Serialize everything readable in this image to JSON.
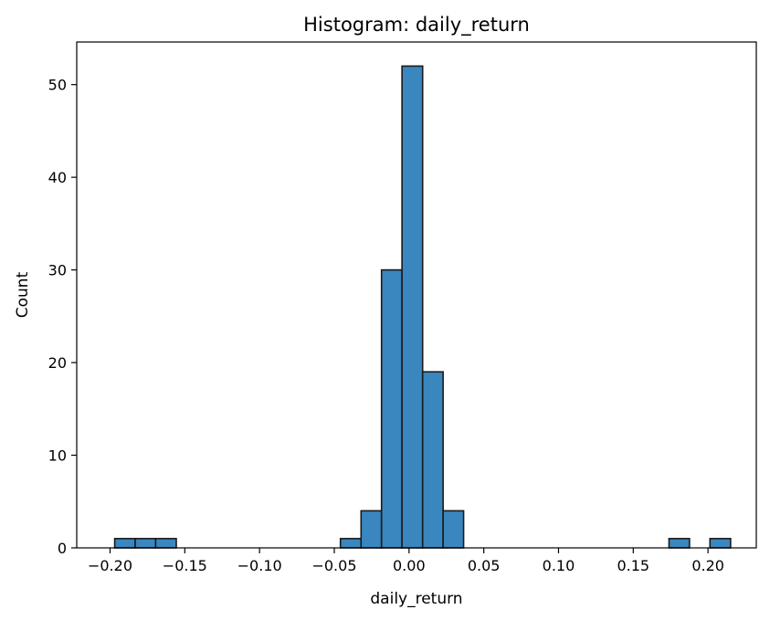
{
  "chart_data": {
    "type": "bar",
    "title": "Histogram: daily_return",
    "xlabel": "daily_return",
    "ylabel": "Count",
    "xlim": [
      -0.2223,
      0.2323
    ],
    "ylim": [
      0,
      54.6
    ],
    "xticks": [
      -0.2,
      -0.15,
      -0.1,
      -0.05,
      0.0,
      0.05,
      0.1,
      0.15,
      0.2
    ],
    "xtick_labels": [
      "−0.20",
      "−0.15",
      "−0.10",
      "−0.05",
      "0.00",
      "0.05",
      "0.10",
      "0.15",
      "0.20"
    ],
    "yticks": [
      0,
      10,
      20,
      30,
      40,
      50
    ],
    "ytick_labels": [
      "0",
      "10",
      "20",
      "30",
      "40",
      "50"
    ],
    "grid": false,
    "bin_width": 0.01373,
    "bins": [
      {
        "x0": -0.1969,
        "x1": -0.1832,
        "count": 1
      },
      {
        "x0": -0.1832,
        "x1": -0.1695,
        "count": 1
      },
      {
        "x0": -0.1695,
        "x1": -0.1557,
        "count": 1
      },
      {
        "x0": -0.1557,
        "x1": -0.142,
        "count": 0
      },
      {
        "x0": -0.142,
        "x1": -0.1283,
        "count": 0
      },
      {
        "x0": -0.1283,
        "x1": -0.1145,
        "count": 0
      },
      {
        "x0": -0.1145,
        "x1": -0.1008,
        "count": 0
      },
      {
        "x0": -0.1008,
        "x1": -0.0871,
        "count": 0
      },
      {
        "x0": -0.0871,
        "x1": -0.0733,
        "count": 0
      },
      {
        "x0": -0.0733,
        "x1": -0.0596,
        "count": 0
      },
      {
        "x0": -0.0596,
        "x1": -0.0459,
        "count": 0
      },
      {
        "x0": -0.0459,
        "x1": -0.0321,
        "count": 1
      },
      {
        "x0": -0.0321,
        "x1": -0.0184,
        "count": 4
      },
      {
        "x0": -0.0184,
        "x1": -0.0047,
        "count": 30
      },
      {
        "x0": -0.0047,
        "x1": 0.0091,
        "count": 52
      },
      {
        "x0": 0.0091,
        "x1": 0.0228,
        "count": 19
      },
      {
        "x0": 0.0228,
        "x1": 0.0365,
        "count": 4
      },
      {
        "x0": 0.0365,
        "x1": 0.0503,
        "count": 0
      },
      {
        "x0": 0.0503,
        "x1": 0.064,
        "count": 0
      },
      {
        "x0": 0.064,
        "x1": 0.0777,
        "count": 0
      },
      {
        "x0": 0.0777,
        "x1": 0.0915,
        "count": 0
      },
      {
        "x0": 0.0915,
        "x1": 0.1052,
        "count": 0
      },
      {
        "x0": 0.1052,
        "x1": 0.1189,
        "count": 0
      },
      {
        "x0": 0.1189,
        "x1": 0.1327,
        "count": 0
      },
      {
        "x0": 0.1327,
        "x1": 0.1464,
        "count": 0
      },
      {
        "x0": 0.1464,
        "x1": 0.1601,
        "count": 0
      },
      {
        "x0": 0.1601,
        "x1": 0.1739,
        "count": 0
      },
      {
        "x0": 0.1739,
        "x1": 0.1876,
        "count": 1
      },
      {
        "x0": 0.1876,
        "x1": 0.2013,
        "count": 0
      },
      {
        "x0": 0.2013,
        "x1": 0.2151,
        "count": 1
      }
    ],
    "bar_color": "#3a86be",
    "edge_color": "#1a1a1a"
  }
}
